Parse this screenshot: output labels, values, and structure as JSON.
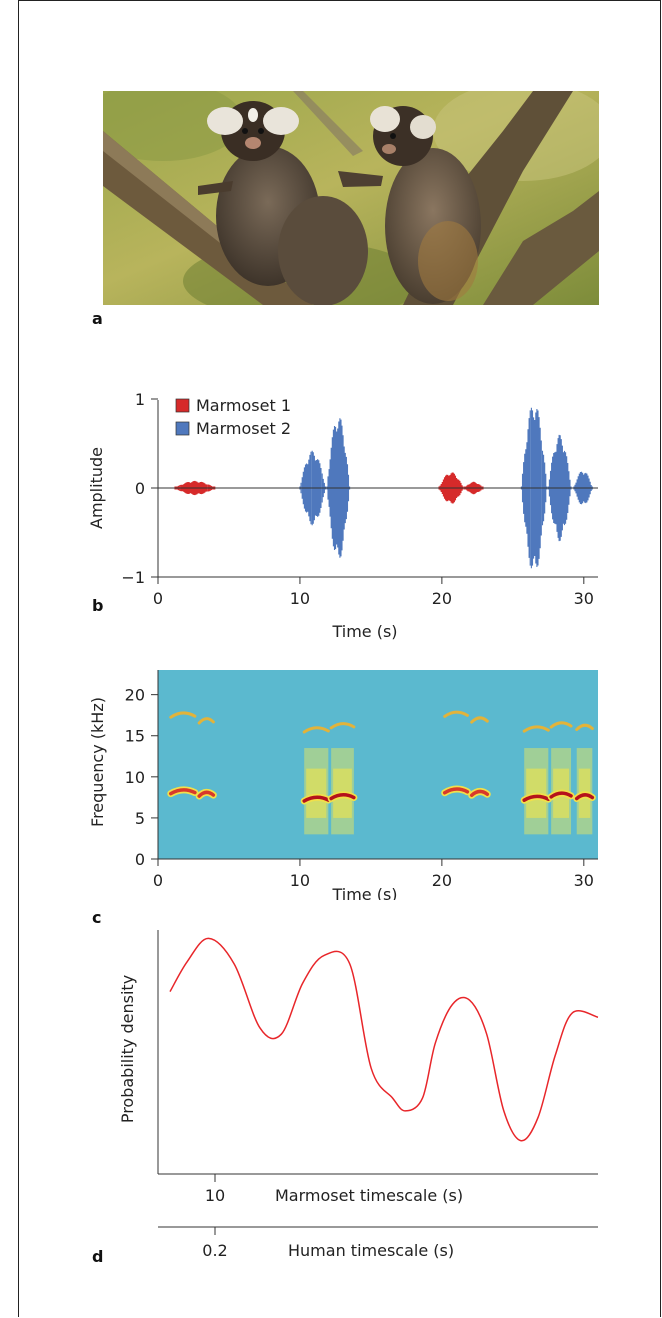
{
  "panels": {
    "a": {
      "letter": "a"
    },
    "b": {
      "letter": "b"
    },
    "c": {
      "letter": "c"
    },
    "d": {
      "letter": "d"
    }
  },
  "colors": {
    "marmoset1": "#d62a2a",
    "marmoset2": "#4f78bd",
    "density": "#e8262a",
    "spectrogram_bg": "#5bb9cf"
  },
  "chart_data": [
    {
      "type": "line",
      "panel": "b",
      "xlabel": "Time (s)",
      "ylabel": "Amplitude",
      "xlim": [
        0,
        31
      ],
      "ylim": [
        -1,
        1
      ],
      "xticks": [
        "0",
        "10",
        "20",
        "30"
      ],
      "yticks": [
        "1",
        "0",
        "−1"
      ],
      "legend": {
        "placement": "top-left",
        "entries": [
          "Marmoset 1",
          "Marmoset 2"
        ]
      },
      "series": [
        {
          "name": "Marmoset 1",
          "color": "#d62a2a",
          "bursts": [
            {
              "start": 1.2,
              "end": 4.0,
              "amp": 0.08
            },
            {
              "start": 19.8,
              "end": 21.5,
              "amp": 0.18
            },
            {
              "start": 21.6,
              "end": 22.9,
              "amp": 0.07
            }
          ]
        },
        {
          "name": "Marmoset 2",
          "color": "#4f78bd",
          "bursts": [
            {
              "start": 10.0,
              "end": 11.8,
              "amp": 0.42
            },
            {
              "start": 11.9,
              "end": 13.5,
              "amp": 0.82
            },
            {
              "start": 25.6,
              "end": 27.4,
              "amp": 0.97
            },
            {
              "start": 27.5,
              "end": 29.1,
              "amp": 0.6
            },
            {
              "start": 29.3,
              "end": 30.6,
              "amp": 0.2
            }
          ]
        }
      ]
    },
    {
      "type": "heatmap",
      "panel": "c",
      "xlabel": "Time (s)",
      "ylabel": "Frequency (kHz)",
      "xlim": [
        0,
        31
      ],
      "ylim": [
        0,
        23
      ],
      "xticks": [
        "0",
        "10",
        "20",
        "30"
      ],
      "yticks": [
        "0",
        "5",
        "10",
        "15",
        "20"
      ],
      "calls": [
        {
          "start": 0.9,
          "end": 2.6,
          "f0": 8.2,
          "harmonic": 17.5,
          "broadband": false
        },
        {
          "start": 2.9,
          "end": 3.9,
          "f0": 7.9,
          "harmonic": 16.8,
          "broadband": false
        },
        {
          "start": 10.3,
          "end": 12.0,
          "f0": 7.3,
          "harmonic": 15.7,
          "broadband": true
        },
        {
          "start": 12.2,
          "end": 13.8,
          "f0": 7.6,
          "harmonic": 16.2,
          "broadband": true
        },
        {
          "start": 20.2,
          "end": 21.8,
          "f0": 8.3,
          "harmonic": 17.6,
          "broadband": false
        },
        {
          "start": 22.1,
          "end": 23.2,
          "f0": 8.0,
          "harmonic": 16.9,
          "broadband": false
        },
        {
          "start": 25.8,
          "end": 27.5,
          "f0": 7.4,
          "harmonic": 15.8,
          "broadband": true
        },
        {
          "start": 27.7,
          "end": 29.1,
          "f0": 7.8,
          "harmonic": 16.3,
          "broadband": true
        },
        {
          "start": 29.5,
          "end": 30.6,
          "f0": 7.6,
          "harmonic": 16.0,
          "broadband": true
        }
      ]
    },
    {
      "type": "line",
      "panel": "d",
      "ylabel": "Probability density",
      "xaxes": [
        {
          "label": "Marmoset timescale (s)",
          "tick": "10"
        },
        {
          "label": "Human timescale (s)",
          "tick": "0.2"
        }
      ],
      "series": [
        {
          "name": "",
          "color": "#e8262a",
          "x": [
            0.0,
            0.04,
            0.09,
            0.15,
            0.21,
            0.26,
            0.31,
            0.36,
            0.42,
            0.47,
            0.52,
            0.55,
            0.59,
            0.62,
            0.66,
            0.7,
            0.74,
            0.78,
            0.82,
            0.86,
            0.9,
            0.94,
            1.0
          ],
          "y": [
            0.72,
            0.86,
            0.97,
            0.85,
            0.55,
            0.52,
            0.76,
            0.89,
            0.85,
            0.36,
            0.22,
            0.16,
            0.22,
            0.48,
            0.66,
            0.68,
            0.52,
            0.16,
            0.02,
            0.13,
            0.42,
            0.62,
            0.6
          ]
        }
      ]
    }
  ]
}
